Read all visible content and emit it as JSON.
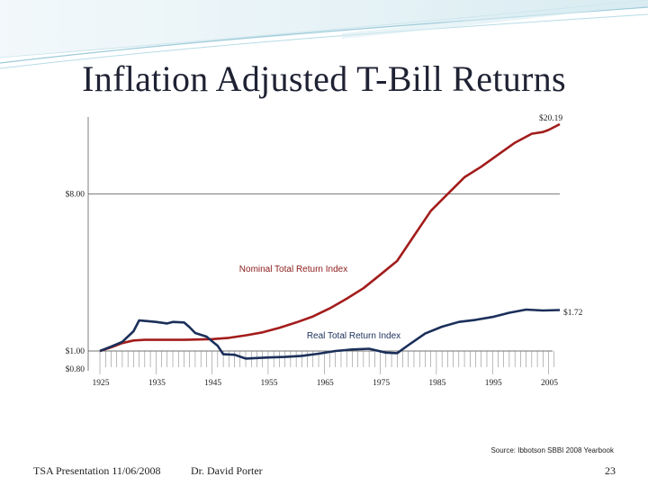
{
  "slide": {
    "title": "Inflation Adjusted T-Bill Returns",
    "footer_left": "TSA Presentation 11/06/2008",
    "footer_mid": "Dr. David Porter",
    "page_number": "23",
    "source": "Source: Ibbotson SBBI 2008 Yearbook"
  },
  "chart_data": {
    "type": "line",
    "title": "Inflation Adjusted T-Bill Returns",
    "xlabel": "",
    "ylabel": "",
    "xlim": [
      1925,
      2007
    ],
    "x_ticks": [
      1925,
      1935,
      1945,
      1955,
      1965,
      1975,
      1985,
      1995,
      2005
    ],
    "y_ticks": [
      {
        "value": 0.8,
        "label": "$0.80"
      },
      {
        "value": 1.0,
        "label": "$1.00"
      },
      {
        "value": 8.0,
        "label": "$8.00"
      }
    ],
    "gridlines": [
      8.0
    ],
    "annotations": [
      {
        "text": "$20.19",
        "series": "Nominal Total Return Index",
        "year": 2007,
        "value": 20.19
      },
      {
        "text": "$1.72",
        "series": "Real Total Return Index",
        "year": 2007,
        "value": 1.72
      },
      {
        "text": "Nominal Total Return Index",
        "series": "Nominal Total Return Index"
      },
      {
        "text": "Real Total Return Index",
        "series": "Real Total Return Index"
      }
    ],
    "series": [
      {
        "name": "Nominal Total Return Index",
        "color": "#a31c1c",
        "points": [
          [
            1925,
            1.0
          ],
          [
            1927,
            1.05
          ],
          [
            1929,
            1.11
          ],
          [
            1931,
            1.15
          ],
          [
            1933,
            1.16
          ],
          [
            1935,
            1.16
          ],
          [
            1940,
            1.16
          ],
          [
            1945,
            1.17
          ],
          [
            1948,
            1.19
          ],
          [
            1951,
            1.23
          ],
          [
            1954,
            1.28
          ],
          [
            1957,
            1.36
          ],
          [
            1960,
            1.46
          ],
          [
            1963,
            1.58
          ],
          [
            1966,
            1.76
          ],
          [
            1969,
            2.0
          ],
          [
            1972,
            2.3
          ],
          [
            1975,
            2.75
          ],
          [
            1978,
            3.3
          ],
          [
            1981,
            4.6
          ],
          [
            1984,
            6.4
          ],
          [
            1987,
            8.0
          ],
          [
            1990,
            10.0
          ],
          [
            1993,
            11.5
          ],
          [
            1996,
            13.5
          ],
          [
            1999,
            15.8
          ],
          [
            2002,
            17.8
          ],
          [
            2004,
            18.2
          ],
          [
            2005,
            18.7
          ],
          [
            2007,
            20.19
          ]
        ]
      },
      {
        "name": "Real Total Return Index",
        "color": "#1b2f5a",
        "points": [
          [
            1925,
            1.0
          ],
          [
            1927,
            1.06
          ],
          [
            1929,
            1.13
          ],
          [
            1931,
            1.3
          ],
          [
            1932,
            1.5
          ],
          [
            1933,
            1.49
          ],
          [
            1935,
            1.47
          ],
          [
            1937,
            1.44
          ],
          [
            1938,
            1.47
          ],
          [
            1940,
            1.46
          ],
          [
            1941,
            1.37
          ],
          [
            1942,
            1.27
          ],
          [
            1944,
            1.21
          ],
          [
            1946,
            1.07
          ],
          [
            1947,
            0.94
          ],
          [
            1949,
            0.93
          ],
          [
            1951,
            0.86
          ],
          [
            1953,
            0.87
          ],
          [
            1955,
            0.88
          ],
          [
            1958,
            0.89
          ],
          [
            1961,
            0.91
          ],
          [
            1964,
            0.95
          ],
          [
            1967,
            1.0
          ],
          [
            1970,
            1.02
          ],
          [
            1973,
            1.03
          ],
          [
            1976,
            0.97
          ],
          [
            1978,
            0.96
          ],
          [
            1980,
            1.08
          ],
          [
            1983,
            1.26
          ],
          [
            1986,
            1.38
          ],
          [
            1989,
            1.47
          ],
          [
            1992,
            1.51
          ],
          [
            1995,
            1.57
          ],
          [
            1998,
            1.66
          ],
          [
            2001,
            1.73
          ],
          [
            2004,
            1.71
          ],
          [
            2007,
            1.72
          ]
        ]
      }
    ]
  }
}
